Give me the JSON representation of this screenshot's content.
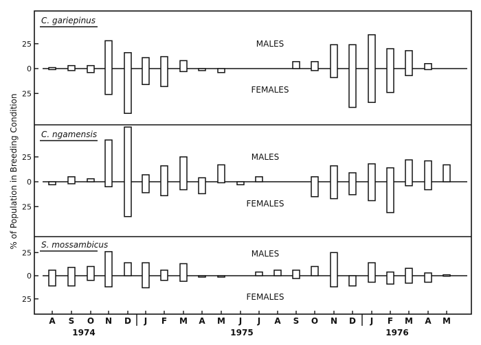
{
  "chart_data": {
    "type": "bar",
    "ylabel": "% of Population in Breeding Condition",
    "months": [
      "A",
      "S",
      "O",
      "N",
      "D",
      "J",
      "F",
      "M",
      "A",
      "M",
      "J",
      "J",
      "A",
      "S",
      "O",
      "N",
      "D",
      "J",
      "F",
      "M",
      "A",
      "M"
    ],
    "years": [
      "1974",
      "1975",
      "1976"
    ],
    "y_ticks": [
      "25",
      "0",
      "25"
    ],
    "top_label": "MALES",
    "bottom_label": "FEMALES",
    "panels": [
      {
        "species": "C. gariepinus",
        "males": [
          1,
          3,
          3,
          28,
          16,
          11,
          12,
          8,
          0,
          0,
          null,
          null,
          null,
          7,
          7,
          24,
          24,
          34,
          20,
          18,
          5,
          null
        ],
        "females": [
          1,
          2,
          4,
          26,
          45,
          16,
          18,
          3,
          2,
          4,
          null,
          null,
          null,
          0,
          2,
          9,
          39,
          34,
          24,
          7,
          1,
          null
        ]
      },
      {
        "species": "C. ngamensis",
        "males": [
          0,
          5,
          3,
          42,
          55,
          7,
          16,
          25,
          4,
          17,
          0,
          5,
          null,
          null,
          5,
          16,
          9,
          18,
          14,
          22,
          21,
          17
        ],
        "females": [
          3,
          2,
          0,
          5,
          35,
          11,
          14,
          8,
          12,
          1,
          3,
          0,
          null,
          null,
          15,
          17,
          13,
          19,
          31,
          4,
          8,
          0
        ]
      },
      {
        "species": "S. mossambicus",
        "males": [
          6,
          9,
          10,
          26,
          14,
          14,
          6,
          13,
          0,
          0,
          null,
          4,
          6,
          6,
          10,
          25,
          0,
          14,
          4,
          8,
          3,
          1
        ],
        "females": [
          11,
          11,
          5,
          12,
          0,
          13,
          5,
          6,
          0,
          1,
          null,
          0,
          0,
          3,
          0,
          12,
          11,
          7,
          9,
          8,
          7,
          0
        ]
      }
    ]
  }
}
